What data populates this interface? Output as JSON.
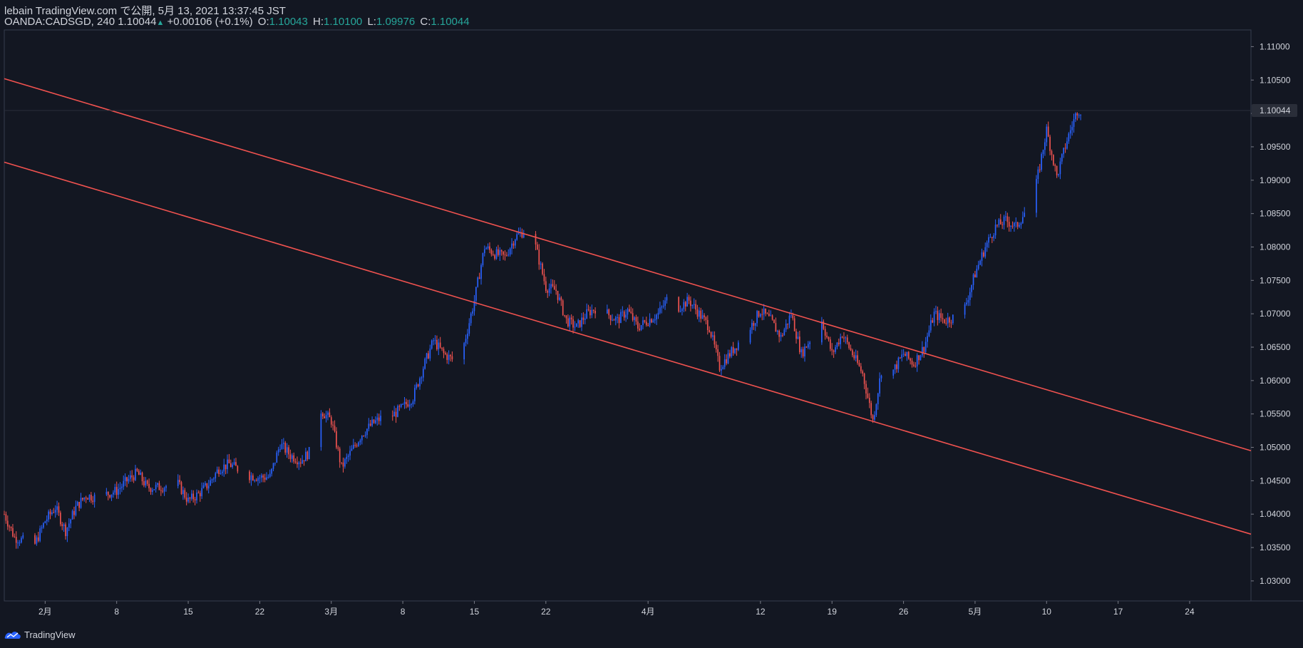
{
  "header": {
    "publish_line": "lebain TradingView.com で公開, 5月 13, 2021 13:37:45 JST",
    "symbol_line": "OANDA:CADSGD, 240",
    "last_price": "1.10044",
    "up_arrow": "▲",
    "change": "+0.00106 (+0.1%)",
    "open_label": "O:",
    "open_value": "1.10043",
    "high_label": "H:",
    "high_value": "1.10100",
    "low_label": "L:",
    "low_value": "1.09976",
    "close_label": "C:",
    "close_value": "1.10044"
  },
  "footer": {
    "brand": "TradingView",
    "logo_icon": "tradingview-logo-icon"
  },
  "colors": {
    "background": "#131722",
    "up": "#2962ff",
    "down": "#ef5350",
    "trendline": "#f0524f",
    "text": "#d1d4dc",
    "grid": "#363c4e",
    "price_tag_bg": "#2a2e39"
  },
  "chart_data": {
    "type": "candlestick",
    "symbol": "OANDA:CADSGD",
    "interval": "240",
    "x_range": [
      "2021-01-28",
      "2021-05-30"
    ],
    "ylim": [
      1.027,
      1.1125
    ],
    "grid": false,
    "y_ticks": [
      "1.03000",
      "1.03500",
      "1.04000",
      "1.04500",
      "1.05000",
      "1.05500",
      "1.06000",
      "1.06500",
      "1.07000",
      "1.07500",
      "1.08000",
      "1.08500",
      "1.09000",
      "1.09500",
      "1.10000",
      "1.10500",
      "1.11000"
    ],
    "x_ticks": [
      {
        "label": "2月",
        "date": "2021-02-01"
      },
      {
        "label": "8",
        "date": "2021-02-08"
      },
      {
        "label": "15",
        "date": "2021-02-15"
      },
      {
        "label": "22",
        "date": "2021-02-22"
      },
      {
        "label": "3月",
        "date": "2021-03-01"
      },
      {
        "label": "8",
        "date": "2021-03-08"
      },
      {
        "label": "15",
        "date": "2021-03-15"
      },
      {
        "label": "22",
        "date": "2021-03-22"
      },
      {
        "label": "4月",
        "date": "2021-04-01"
      },
      {
        "label": "12",
        "date": "2021-04-12"
      },
      {
        "label": "19",
        "date": "2021-04-19"
      },
      {
        "label": "26",
        "date": "2021-04-26"
      },
      {
        "label": "5月",
        "date": "2021-05-03"
      },
      {
        "label": "10",
        "date": "2021-05-10"
      },
      {
        "label": "17",
        "date": "2021-05-17"
      },
      {
        "label": "24",
        "date": "2021-05-24"
      }
    ],
    "last_price": 1.10044,
    "last_price_label": "1.10044",
    "trend_lines": [
      {
        "name": "upper",
        "from": {
          "date": "2021-01-28",
          "price": 1.1052
        },
        "to": {
          "date": "2021-05-30",
          "price": 1.0495
        }
      },
      {
        "name": "lower",
        "from": {
          "date": "2021-01-28",
          "price": 1.0927
        },
        "to": {
          "date": "2021-05-30",
          "price": 1.037
        }
      }
    ],
    "closes": [
      {
        "date": "2021-01-28",
        "close": 1.04
      },
      {
        "date": "2021-01-29",
        "close": 1.0365
      },
      {
        "date": "2021-01-31",
        "close": 1.0355
      },
      {
        "date": "2021-02-01",
        "close": 1.039
      },
      {
        "date": "2021-02-02",
        "close": 1.041
      },
      {
        "date": "2021-02-03",
        "close": 1.0375
      },
      {
        "date": "2021-02-04",
        "close": 1.041
      },
      {
        "date": "2021-02-05",
        "close": 1.0428
      },
      {
        "date": "2021-02-06",
        "close": 1.0425
      },
      {
        "date": "2021-02-08",
        "close": 1.0435
      },
      {
        "date": "2021-02-09",
        "close": 1.045
      },
      {
        "date": "2021-02-10",
        "close": 1.0462
      },
      {
        "date": "2021-02-11",
        "close": 1.044
      },
      {
        "date": "2021-02-12",
        "close": 1.044
      },
      {
        "date": "2021-02-14",
        "close": 1.0445
      },
      {
        "date": "2021-02-15",
        "close": 1.042
      },
      {
        "date": "2021-02-16",
        "close": 1.043
      },
      {
        "date": "2021-02-17",
        "close": 1.0445
      },
      {
        "date": "2021-02-18",
        "close": 1.0468
      },
      {
        "date": "2021-02-19",
        "close": 1.0475
      },
      {
        "date": "2021-02-21",
        "close": 1.0458
      },
      {
        "date": "2021-02-22",
        "close": 1.0455
      },
      {
        "date": "2021-02-23",
        "close": 1.0456
      },
      {
        "date": "2021-02-24",
        "close": 1.0505
      },
      {
        "date": "2021-02-25",
        "close": 1.0488
      },
      {
        "date": "2021-02-26",
        "close": 1.048
      },
      {
        "date": "2021-02-27",
        "close": 1.0495
      },
      {
        "date": "2021-02-28",
        "close": 1.0555
      },
      {
        "date": "2021-03-01",
        "close": 1.054
      },
      {
        "date": "2021-03-02",
        "close": 1.047
      },
      {
        "date": "2021-03-03",
        "close": 1.0495
      },
      {
        "date": "2021-03-04",
        "close": 1.052
      },
      {
        "date": "2021-03-05",
        "close": 1.0535
      },
      {
        "date": "2021-03-06",
        "close": 1.0545
      },
      {
        "date": "2021-03-07",
        "close": 1.0548
      },
      {
        "date": "2021-03-08",
        "close": 1.056
      },
      {
        "date": "2021-03-09",
        "close": 1.0575
      },
      {
        "date": "2021-03-10",
        "close": 1.062
      },
      {
        "date": "2021-03-11",
        "close": 1.066
      },
      {
        "date": "2021-03-12",
        "close": 1.064
      },
      {
        "date": "2021-03-13",
        "close": 1.063
      },
      {
        "date": "2021-03-14",
        "close": 1.0655
      },
      {
        "date": "2021-03-15",
        "close": 1.072
      },
      {
        "date": "2021-03-16",
        "close": 1.08
      },
      {
        "date": "2021-03-17",
        "close": 1.079
      },
      {
        "date": "2021-03-18",
        "close": 1.0785
      },
      {
        "date": "2021-03-19",
        "close": 1.0815
      },
      {
        "date": "2021-03-20",
        "close": 1.0825
      },
      {
        "date": "2021-03-21",
        "close": 1.08
      },
      {
        "date": "2021-03-22",
        "close": 1.074
      },
      {
        "date": "2021-03-23",
        "close": 1.0735
      },
      {
        "date": "2021-03-24",
        "close": 1.069
      },
      {
        "date": "2021-03-25",
        "close": 1.068
      },
      {
        "date": "2021-03-26",
        "close": 1.07
      },
      {
        "date": "2021-03-27",
        "close": 1.071
      },
      {
        "date": "2021-03-28",
        "close": 1.07
      },
      {
        "date": "2021-03-29",
        "close": 1.069
      },
      {
        "date": "2021-03-30",
        "close": 1.0705
      },
      {
        "date": "2021-03-31",
        "close": 1.068
      },
      {
        "date": "2021-04-01",
        "close": 1.069
      },
      {
        "date": "2021-04-02",
        "close": 1.07
      },
      {
        "date": "2021-04-03",
        "close": 1.0725
      },
      {
        "date": "2021-04-04",
        "close": 1.071
      },
      {
        "date": "2021-04-05",
        "close": 1.072
      },
      {
        "date": "2021-04-06",
        "close": 1.07
      },
      {
        "date": "2021-04-07",
        "close": 1.068
      },
      {
        "date": "2021-04-08",
        "close": 1.062
      },
      {
        "date": "2021-04-09",
        "close": 1.064
      },
      {
        "date": "2021-04-10",
        "close": 1.066
      },
      {
        "date": "2021-04-11",
        "close": 1.068
      },
      {
        "date": "2021-04-12",
        "close": 1.0705
      },
      {
        "date": "2021-04-13",
        "close": 1.069
      },
      {
        "date": "2021-04-14",
        "close": 1.0665
      },
      {
        "date": "2021-04-15",
        "close": 1.07
      },
      {
        "date": "2021-04-16",
        "close": 1.064
      },
      {
        "date": "2021-04-17",
        "close": 1.0665
      },
      {
        "date": "2021-04-18",
        "close": 1.069
      },
      {
        "date": "2021-04-19",
        "close": 1.064
      },
      {
        "date": "2021-04-20",
        "close": 1.067
      },
      {
        "date": "2021-04-21",
        "close": 1.064
      },
      {
        "date": "2021-04-22",
        "close": 1.061
      },
      {
        "date": "2021-04-23",
        "close": 1.054
      },
      {
        "date": "2021-04-24",
        "close": 1.063
      },
      {
        "date": "2021-04-25",
        "close": 1.0615
      },
      {
        "date": "2021-04-26",
        "close": 1.064
      },
      {
        "date": "2021-04-27",
        "close": 1.0625
      },
      {
        "date": "2021-04-28",
        "close": 1.065
      },
      {
        "date": "2021-04-29",
        "close": 1.07
      },
      {
        "date": "2021-04-30",
        "close": 1.069
      },
      {
        "date": "2021-05-01",
        "close": 1.0695
      },
      {
        "date": "2021-05-02",
        "close": 1.071
      },
      {
        "date": "2021-05-03",
        "close": 1.076
      },
      {
        "date": "2021-05-04",
        "close": 1.08
      },
      {
        "date": "2021-05-05",
        "close": 1.083
      },
      {
        "date": "2021-05-06",
        "close": 1.084
      },
      {
        "date": "2021-05-07",
        "close": 1.083
      },
      {
        "date": "2021-05-08",
        "close": 1.0855
      },
      {
        "date": "2021-05-09",
        "close": 1.0895
      },
      {
        "date": "2021-05-10",
        "close": 1.0975
      },
      {
        "date": "2021-05-11",
        "close": 1.0905
      },
      {
        "date": "2021-05-12",
        "close": 1.096
      },
      {
        "date": "2021-05-13",
        "close": 1.10044
      }
    ]
  }
}
